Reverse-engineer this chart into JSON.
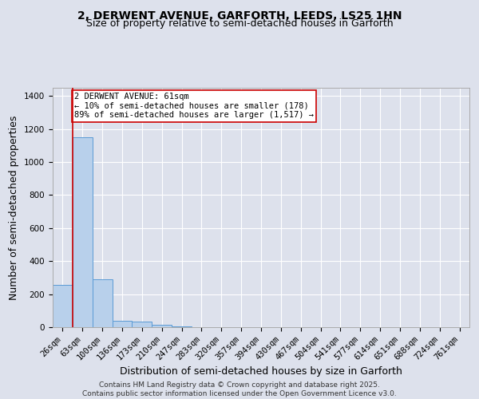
{
  "title_line1": "2, DERWENT AVENUE, GARFORTH, LEEDS, LS25 1HN",
  "title_line2": "Size of property relative to semi-detached houses in Garforth",
  "xlabel": "Distribution of semi-detached houses by size in Garforth",
  "ylabel": "Number of semi-detached properties",
  "categories": [
    "26sqm",
    "63sqm",
    "100sqm",
    "136sqm",
    "173sqm",
    "210sqm",
    "247sqm",
    "283sqm",
    "320sqm",
    "357sqm",
    "394sqm",
    "430sqm",
    "467sqm",
    "504sqm",
    "541sqm",
    "577sqm",
    "614sqm",
    "651sqm",
    "688sqm",
    "724sqm",
    "761sqm"
  ],
  "values": [
    258,
    1150,
    290,
    38,
    32,
    13,
    5,
    0,
    0,
    0,
    0,
    0,
    0,
    0,
    0,
    0,
    0,
    0,
    0,
    0,
    0
  ],
  "bar_color": "#b8d0eb",
  "bar_edge_color": "#5b9bd5",
  "background_color": "#dde1ec",
  "plot_bg_color": "#dde1ec",
  "grid_color": "#ffffff",
  "vline_color": "#cc0000",
  "annotation_text": "2 DERWENT AVENUE: 61sqm\n← 10% of semi-detached houses are smaller (178)\n89% of semi-detached houses are larger (1,517) →",
  "ylim": [
    0,
    1450
  ],
  "yticks": [
    0,
    200,
    400,
    600,
    800,
    1000,
    1200,
    1400
  ],
  "footer_line1": "Contains HM Land Registry data © Crown copyright and database right 2025.",
  "footer_line2": "Contains public sector information licensed under the Open Government Licence v3.0.",
  "title_fontsize": 10,
  "subtitle_fontsize": 9,
  "axis_label_fontsize": 9,
  "tick_fontsize": 7.5,
  "annotation_fontsize": 7.5,
  "footer_fontsize": 6.5
}
